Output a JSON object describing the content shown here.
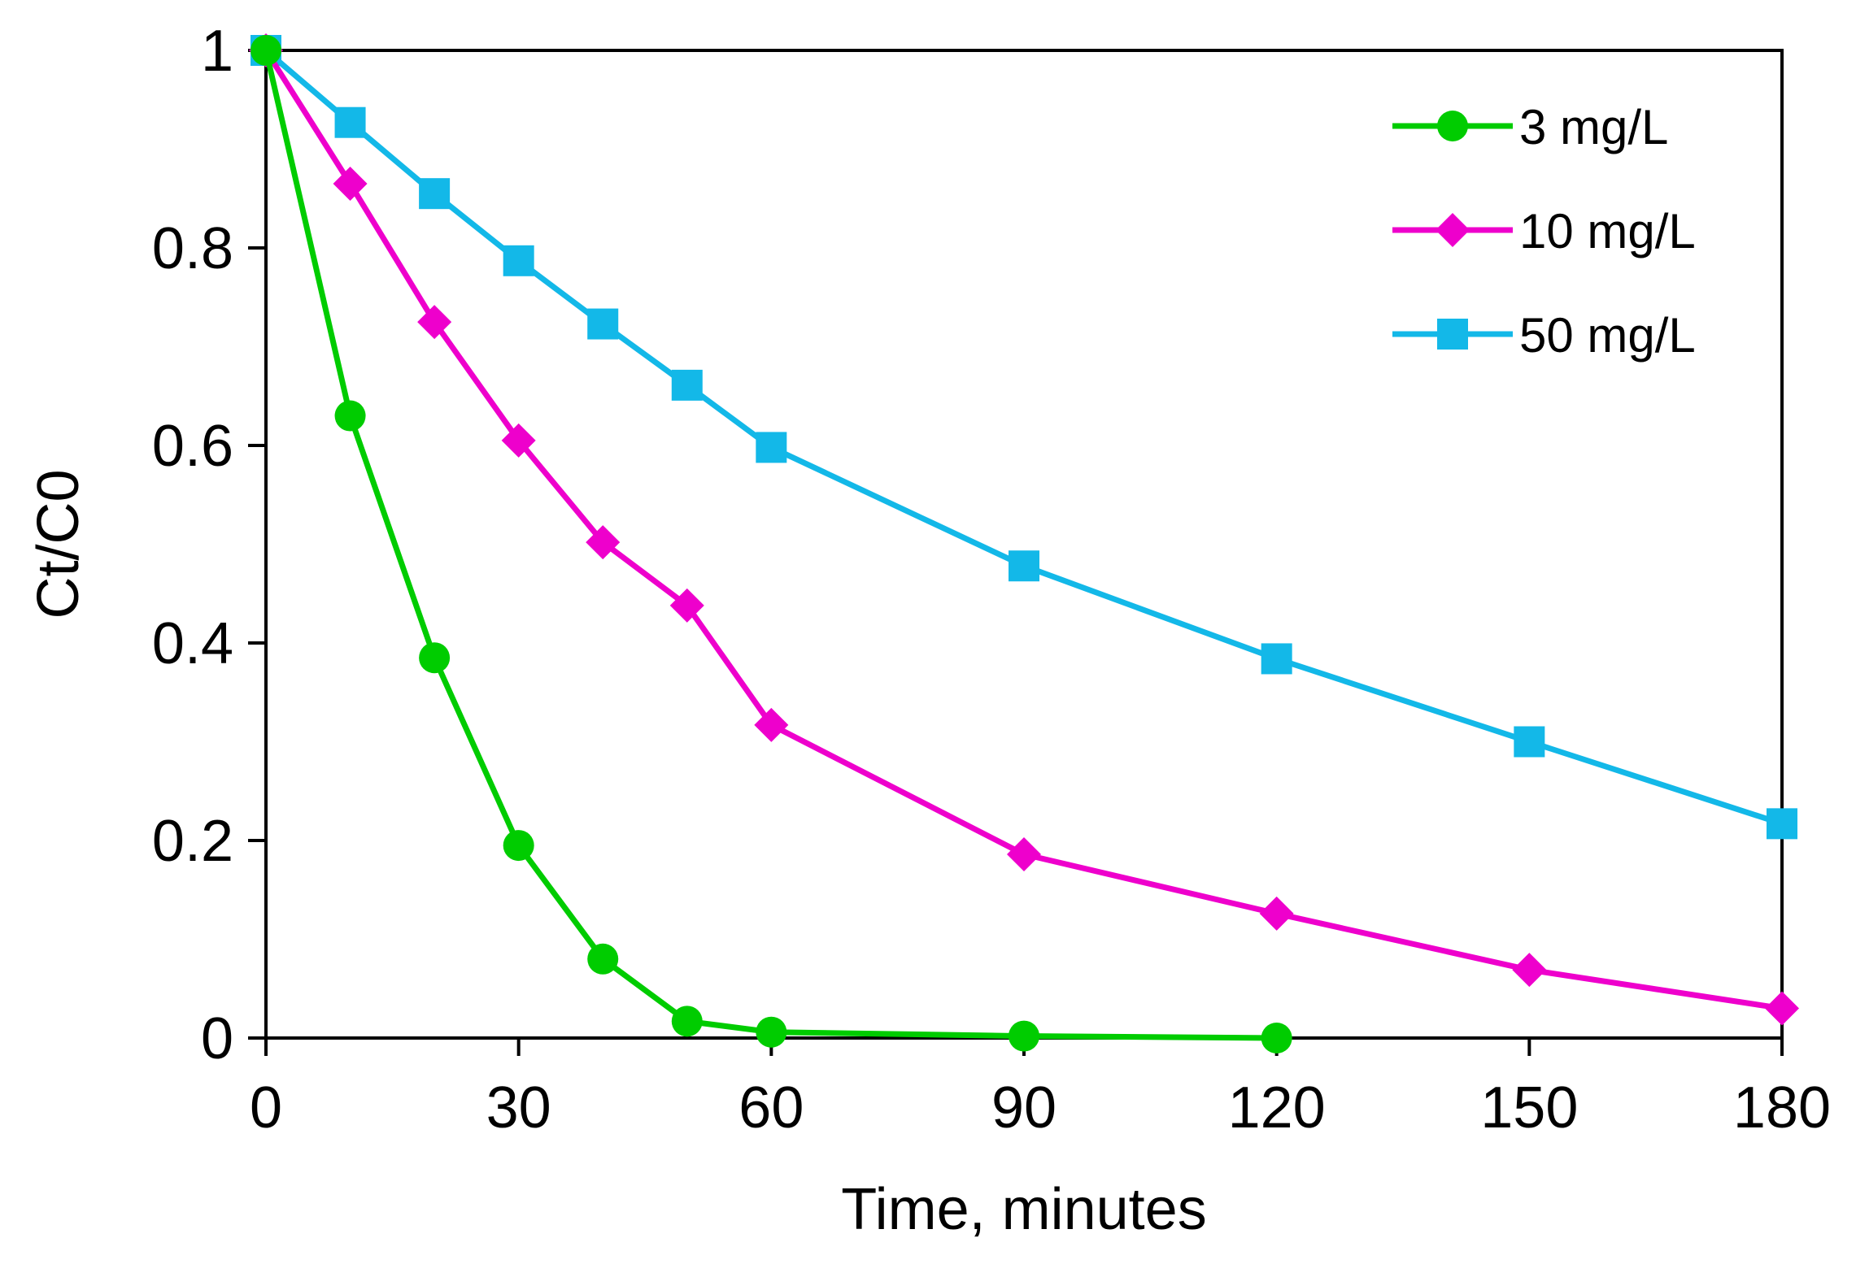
{
  "chart_data": {
    "type": "line",
    "title": "",
    "xlabel": "Time, minutes",
    "ylabel": "Ct/C0",
    "xlim": [
      0,
      180
    ],
    "ylim": [
      0,
      1
    ],
    "xticks": [
      0,
      30,
      60,
      90,
      120,
      150,
      180
    ],
    "xtick_labels": [
      "0",
      "30",
      "60",
      "90",
      "120",
      "150",
      "180"
    ],
    "yticks": [
      0,
      0.2,
      0.4,
      0.6,
      0.8,
      1
    ],
    "ytick_labels": [
      "0",
      "0.2",
      "0.4",
      "0.6",
      "0.8",
      "1"
    ],
    "grid": false,
    "legend_position": "top-right",
    "series": [
      {
        "name": "3 mg/L",
        "color": "#00cc00",
        "marker": "circle",
        "x": [
          0,
          10,
          20,
          30,
          40,
          50,
          60,
          90,
          120
        ],
        "y": [
          1.0,
          0.63,
          0.385,
          0.195,
          0.08,
          0.017,
          0.006,
          0.002,
          0.0
        ]
      },
      {
        "name": "10 mg/L",
        "color": "#ee00cc",
        "marker": "diamond",
        "x": [
          0,
          10,
          20,
          30,
          40,
          50,
          60,
          90,
          120,
          150,
          180
        ],
        "y": [
          1.0,
          0.865,
          0.725,
          0.605,
          0.502,
          0.438,
          0.317,
          0.186,
          0.126,
          0.069,
          0.03
        ]
      },
      {
        "name": "50 mg/L",
        "color": "#13b8e8",
        "marker": "square",
        "x": [
          0,
          10,
          20,
          30,
          40,
          50,
          60,
          90,
          120,
          150,
          180
        ],
        "y": [
          1.0,
          0.927,
          0.855,
          0.787,
          0.723,
          0.661,
          0.598,
          0.478,
          0.384,
          0.3,
          0.217
        ]
      }
    ]
  }
}
